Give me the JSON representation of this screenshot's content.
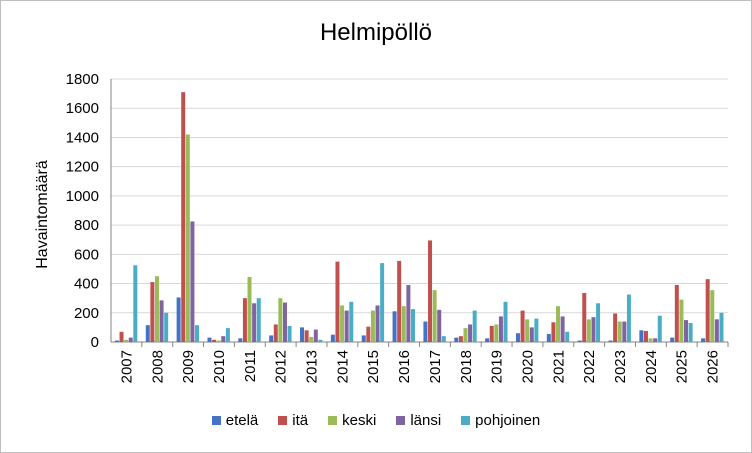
{
  "chart_data": {
    "type": "bar",
    "title": "Helmipöllö",
    "xlabel": "",
    "ylabel": "Havaintomäärä",
    "ylim": [
      0,
      1800
    ],
    "yticks": [
      0,
      200,
      400,
      600,
      800,
      1000,
      1200,
      1400,
      1600,
      1800
    ],
    "grid": true,
    "legend_position": "bottom",
    "categories": [
      "2007",
      "2008",
      "2009",
      "2010",
      "2011",
      "2012",
      "2013",
      "2014",
      "2015",
      "2016",
      "2017",
      "2018",
      "2019",
      "2020",
      "2021",
      "2022",
      "2023",
      "2024",
      "2025",
      "2026"
    ],
    "series": [
      {
        "name": "etelä",
        "color": "#4472C4",
        "values": [
          10,
          115,
          305,
          30,
          25,
          45,
          100,
          50,
          45,
          210,
          140,
          30,
          25,
          60,
          55,
          10,
          10,
          80,
          30,
          25
        ]
      },
      {
        "name": "itä",
        "color": "#C0504D",
        "values": [
          70,
          410,
          1710,
          15,
          300,
          120,
          80,
          550,
          105,
          555,
          695,
          40,
          110,
          215,
          135,
          335,
          195,
          75,
          390,
          430
        ]
      },
      {
        "name": "keski",
        "color": "#9BBB59",
        "values": [
          15,
          450,
          1420,
          10,
          445,
          300,
          35,
          250,
          215,
          245,
          355,
          95,
          120,
          155,
          245,
          155,
          140,
          25,
          290,
          355
        ]
      },
      {
        "name": "länsi",
        "color": "#8064A2",
        "values": [
          30,
          285,
          825,
          40,
          265,
          270,
          85,
          215,
          250,
          390,
          220,
          120,
          175,
          100,
          175,
          170,
          140,
          25,
          150,
          155
        ]
      },
      {
        "name": "pohjoinen",
        "color": "#4BACC6",
        "values": [
          525,
          200,
          115,
          95,
          300,
          110,
          15,
          275,
          540,
          225,
          40,
          215,
          275,
          160,
          70,
          265,
          325,
          180,
          130,
          200
        ]
      }
    ]
  }
}
